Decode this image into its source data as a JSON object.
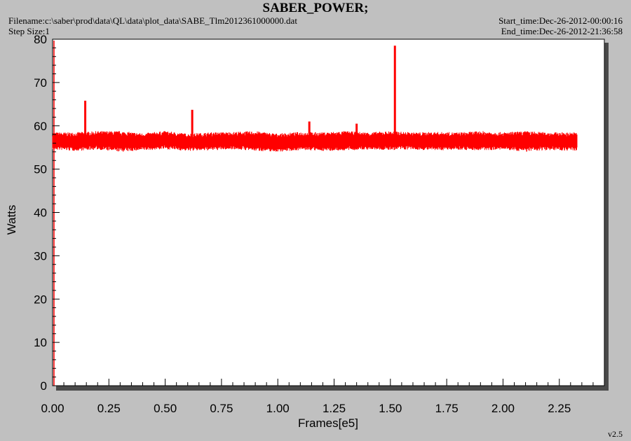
{
  "header": {
    "title": "SABER_POWER;",
    "filename": "Filename:c:\\saber\\prod\\data\\QL\\data\\plot_data\\SABE_Tlm2012361000000.dat",
    "step_size": "Step Size:1",
    "start_time": "Start_time:Dec-26-2012-00:00:16",
    "end_time": "End_time:Dec-26-2012-21:36:58",
    "version": "v2.5"
  },
  "colors": {
    "series": "#ff0000",
    "background": "#c0c0c0",
    "plot_area": "#ffffff"
  },
  "chart_data": {
    "type": "line",
    "title": "SABER_POWER;",
    "xlabel": "Frames[e5]",
    "ylabel": "Watts",
    "xlim": [
      0,
      2.45
    ],
    "ylim": [
      0,
      80
    ],
    "x_ticks": [
      "0.00",
      "0.25",
      "0.50",
      "0.75",
      "1.00",
      "1.25",
      "1.50",
      "1.75",
      "2.00",
      "2.25"
    ],
    "y_ticks": [
      "0",
      "10",
      "20",
      "30",
      "40",
      "50",
      "60",
      "70",
      "80"
    ],
    "grid": false,
    "series": [
      {
        "x": [
          0.0,
          0.1,
          0.2,
          0.3,
          0.4,
          0.5,
          0.6,
          0.7,
          0.8,
          0.9,
          1.0,
          1.1,
          1.2,
          1.3,
          1.4,
          1.5,
          1.6,
          1.7,
          1.8,
          1.9,
          2.0,
          2.1,
          2.2,
          2.33
        ],
        "upper": [
          58.5,
          58.5,
          58.8,
          58.8,
          58.3,
          58.8,
          58.2,
          58.5,
          58.6,
          58.8,
          58.2,
          58.6,
          58.5,
          58.8,
          58.5,
          58.8,
          58.5,
          58.6,
          58.5,
          58.8,
          58.5,
          58.8,
          58.5,
          58.5
        ],
        "lower": [
          54.5,
          54.2,
          54.5,
          54.0,
          54.3,
          54.6,
          54.2,
          54.3,
          54.6,
          54.2,
          54.0,
          54.4,
          54.2,
          54.3,
          54.5,
          54.4,
          54.5,
          54.3,
          54.5,
          54.3,
          54.5,
          54.0,
          54.4,
          54.2
        ],
        "spikes": [
          {
            "x": 0.145,
            "y": 65.8
          },
          {
            "x": 0.62,
            "y": 63.7
          },
          {
            "x": 1.14,
            "y": 61.0
          },
          {
            "x": 1.35,
            "y": 60.5
          },
          {
            "x": 1.52,
            "y": 78.5
          }
        ]
      }
    ]
  }
}
